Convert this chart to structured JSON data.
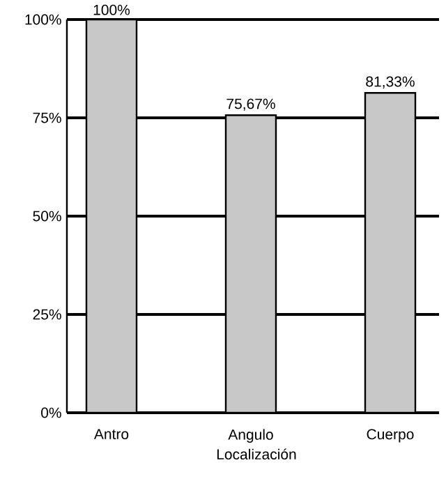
{
  "chart_data": {
    "type": "bar",
    "xlabel": "Localización",
    "categories": [
      "Antro",
      "Angulo",
      "Cuerpo"
    ],
    "values": [
      100,
      75.67,
      81.33
    ],
    "value_labels": [
      "100%",
      "75,67%",
      "81,33%"
    ],
    "color": "#c8c8c8",
    "ylim": [
      0,
      100
    ],
    "yticks": [
      {
        "value": 0,
        "label": "0%"
      },
      {
        "value": 25,
        "label": "25%"
      },
      {
        "value": 50,
        "label": "50%"
      },
      {
        "value": 75,
        "label": "75%"
      },
      {
        "value": 100,
        "label": "100%"
      }
    ],
    "grid": "y"
  }
}
